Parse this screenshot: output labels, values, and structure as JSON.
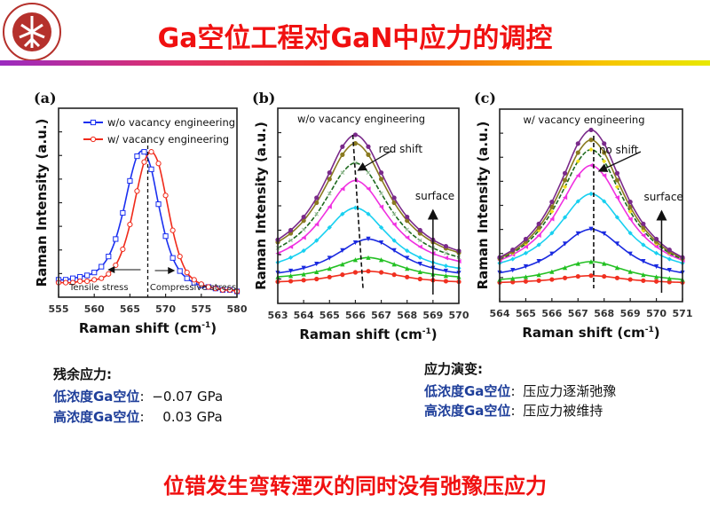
{
  "header": {
    "logo": {
      "icon": "peking-university-seal-icon",
      "text": "PEKING UNIVERSITY 1898",
      "color": "#b5312c"
    },
    "title": "Ga空位工程对GaN中应力的调控"
  },
  "colors": {
    "title": "#f01010",
    "label_blue": "#1f3f9a"
  },
  "left_notes": {
    "heading": "残余应力:",
    "rows": [
      {
        "label": "低浓度Ga空位",
        "sep": ":",
        "value": "−0.07 GPa"
      },
      {
        "label": "高浓度Ga空位",
        "sep": ":",
        "value": "0.03 GPa"
      }
    ]
  },
  "right_notes": {
    "heading": "应力演变:",
    "rows": [
      {
        "label": "低浓度Ga空位",
        "sep": ":",
        "value": "压应力逐渐弛豫"
      },
      {
        "label": "高浓度Ga空位",
        "sep": ":",
        "value": "压应力被维持"
      }
    ]
  },
  "footer": "位错发生弯转湮灭的同时没有弛豫压应力",
  "chart_data": [
    {
      "panel": "(a)",
      "type": "line",
      "xlabel": "Raman shift (cm",
      "xlabel_sup": "-1",
      "xlabel_end": ")",
      "ylabel": "Raman Intensity (a.u.)",
      "xlim": [
        555,
        580
      ],
      "ylim": [
        0,
        1.3
      ],
      "xticks": [
        555,
        560,
        565,
        570,
        575,
        580
      ],
      "legend": "top-right",
      "annotations": {
        "left": "Tensile stress",
        "right": "Compressive stress"
      },
      "x": [
        555,
        556,
        557,
        558,
        559,
        560,
        561,
        562,
        563,
        564,
        565,
        566,
        567,
        568,
        569,
        570,
        571,
        572,
        573,
        574,
        575,
        576,
        577,
        578,
        579,
        580
      ],
      "series": [
        {
          "name": "w/o vacancy engineering",
          "color": "#1a2ff0",
          "marker": "square-open",
          "values": [
            0.12,
            0.12,
            0.13,
            0.14,
            0.15,
            0.17,
            0.21,
            0.28,
            0.4,
            0.58,
            0.8,
            0.97,
            1.0,
            0.88,
            0.64,
            0.42,
            0.27,
            0.18,
            0.13,
            0.1,
            0.08,
            0.07,
            0.06,
            0.05,
            0.05,
            0.04
          ]
        },
        {
          "name": "w/ vacancy engineering",
          "color": "#f02a1a",
          "marker": "circle-open",
          "values": [
            0.1,
            0.1,
            0.1,
            0.11,
            0.11,
            0.12,
            0.13,
            0.16,
            0.22,
            0.33,
            0.5,
            0.73,
            0.93,
            1.0,
            0.92,
            0.7,
            0.46,
            0.28,
            0.17,
            0.12,
            0.09,
            0.07,
            0.06,
            0.05,
            0.05,
            0.04
          ]
        }
      ]
    },
    {
      "panel": "(b)",
      "type": "line",
      "title": "w/o vacancy engineering",
      "xlabel": "Raman shift (cm",
      "xlabel_sup": "-1",
      "xlabel_end": ")",
      "ylabel": "Raman Intensity (a.u.)",
      "xlim": [
        563,
        570
      ],
      "ylim": [
        0,
        10
      ],
      "xticks": [
        563,
        564,
        565,
        566,
        567,
        568,
        569,
        570
      ],
      "annotations": {
        "shift": "red shift",
        "surface": "surface"
      },
      "x": [
        563,
        563.5,
        564,
        564.5,
        565,
        565.5,
        566,
        566.5,
        567,
        567.5,
        568,
        568.5,
        569,
        569.5,
        570
      ],
      "series": [
        {
          "color": "#f03020",
          "marker": "circle",
          "values": [
            1.11,
            1.14,
            1.19,
            1.25,
            1.35,
            1.47,
            1.59,
            1.65,
            1.59,
            1.47,
            1.35,
            1.25,
            1.19,
            1.14,
            1.11
          ]
        },
        {
          "color": "#22c022",
          "marker": "triangle-up",
          "values": [
            1.36,
            1.42,
            1.5,
            1.62,
            1.79,
            2.01,
            2.24,
            2.35,
            2.24,
            2.01,
            1.79,
            1.62,
            1.5,
            1.42,
            1.36
          ]
        },
        {
          "color": "#1a2ae0",
          "marker": "triangle-down",
          "values": [
            1.56,
            1.66,
            1.81,
            2.02,
            2.32,
            2.71,
            3.11,
            3.3,
            3.11,
            2.71,
            2.32,
            2.02,
            1.81,
            1.66,
            1.56
          ]
        },
        {
          "color": "#18d0f0",
          "marker": "diamond",
          "values": [
            2.1,
            2.35,
            2.7,
            3.22,
            3.89,
            4.58,
            4.9,
            4.58,
            3.89,
            3.22,
            2.7,
            2.35,
            2.1,
            1.92,
            1.8
          ]
        },
        {
          "color": "#f030e0",
          "marker": "triangle-left",
          "values": [
            2.56,
            2.9,
            3.37,
            4.05,
            4.95,
            5.87,
            6.3,
            5.87,
            4.95,
            4.05,
            3.37,
            2.9,
            2.56,
            2.33,
            2.16
          ]
        },
        {
          "color": "#1e6a1e",
          "marker": "cross",
          "dashed": true,
          "values": [
            2.84,
            3.23,
            3.78,
            4.58,
            5.63,
            6.7,
            7.2,
            6.7,
            5.63,
            4.58,
            3.78,
            3.23,
            2.84,
            2.57,
            2.37
          ]
        },
        {
          "color": "#8a7a20",
          "marker": "circle",
          "values": [
            3.14,
            3.59,
            4.24,
            5.16,
            6.37,
            7.62,
            8.2,
            7.62,
            6.37,
            5.16,
            4.24,
            3.59,
            3.14,
            2.82,
            2.6
          ]
        },
        {
          "color": "#7a2a8a",
          "marker": "circle",
          "values": [
            3.26,
            3.75,
            4.43,
            5.41,
            6.7,
            8.03,
            8.64,
            8.03,
            6.7,
            5.41,
            4.43,
            3.75,
            3.26,
            2.93,
            2.69
          ]
        }
      ]
    },
    {
      "panel": "(c)",
      "type": "line",
      "title": "w/ vacancy engineering",
      "xlabel": "Raman shift (cm",
      "xlabel_sup": "-1",
      "xlabel_end": ")",
      "ylabel": "Raman Intensity (a.u.)",
      "xlim": [
        564,
        571
      ],
      "ylim": [
        0,
        10
      ],
      "xticks": [
        564,
        565,
        566,
        567,
        568,
        569,
        570,
        571
      ],
      "annotations": {
        "shift": "no shift",
        "surface": "surface"
      },
      "x": [
        564,
        564.5,
        565,
        565.5,
        566,
        566.5,
        567,
        567.5,
        568,
        568.5,
        569,
        569.5,
        570,
        570.5,
        571
      ],
      "series": [
        {
          "color": "#f03020",
          "marker": "circle",
          "values": [
            1.0,
            1.02,
            1.05,
            1.09,
            1.15,
            1.23,
            1.31,
            1.35,
            1.31,
            1.23,
            1.15,
            1.09,
            1.05,
            1.02,
            1.0
          ]
        },
        {
          "color": "#22c022",
          "marker": "triangle-up",
          "values": [
            1.15,
            1.21,
            1.29,
            1.4,
            1.56,
            1.77,
            1.98,
            2.08,
            1.98,
            1.77,
            1.56,
            1.4,
            1.29,
            1.21,
            1.15
          ]
        },
        {
          "color": "#1a2ae0",
          "marker": "triangle-down",
          "values": [
            1.5,
            1.63,
            1.82,
            2.09,
            2.48,
            3.0,
            3.53,
            3.77,
            3.53,
            3.0,
            2.48,
            2.09,
            1.82,
            1.63,
            1.5
          ]
        },
        {
          "color": "#18d0f0",
          "marker": "diamond",
          "values": [
            2.0,
            2.21,
            2.52,
            2.95,
            3.56,
            4.38,
            5.21,
            5.6,
            5.21,
            4.38,
            3.56,
            2.95,
            2.52,
            2.21,
            2.0
          ]
        },
        {
          "color": "#f030e0",
          "marker": "triangle-left",
          "values": [
            2.15,
            2.44,
            2.85,
            3.44,
            4.29,
            5.41,
            6.55,
            7.08,
            6.55,
            5.41,
            4.29,
            3.44,
            2.85,
            2.44,
            2.15
          ]
        },
        {
          "color": "#1e6a1e",
          "marker": "diamond-yellow",
          "dashed": true,
          "values": [
            2.2,
            2.53,
            3.01,
            3.7,
            4.68,
            5.96,
            7.29,
            7.9,
            7.29,
            5.96,
            4.68,
            3.7,
            3.01,
            2.53,
            2.2
          ]
        },
        {
          "color": "#8a7a20",
          "marker": "circle",
          "values": [
            2.25,
            2.6,
            3.12,
            3.86,
            4.92,
            6.31,
            7.74,
            8.4,
            7.74,
            6.31,
            4.92,
            3.86,
            3.12,
            2.6,
            2.25
          ]
        },
        {
          "color": "#7a2a8a",
          "marker": "circle",
          "values": [
            2.3,
            2.69,
            3.25,
            4.04,
            5.18,
            6.67,
            8.21,
            8.92,
            8.21,
            6.67,
            5.18,
            4.04,
            3.25,
            2.69,
            2.3
          ]
        }
      ]
    }
  ]
}
